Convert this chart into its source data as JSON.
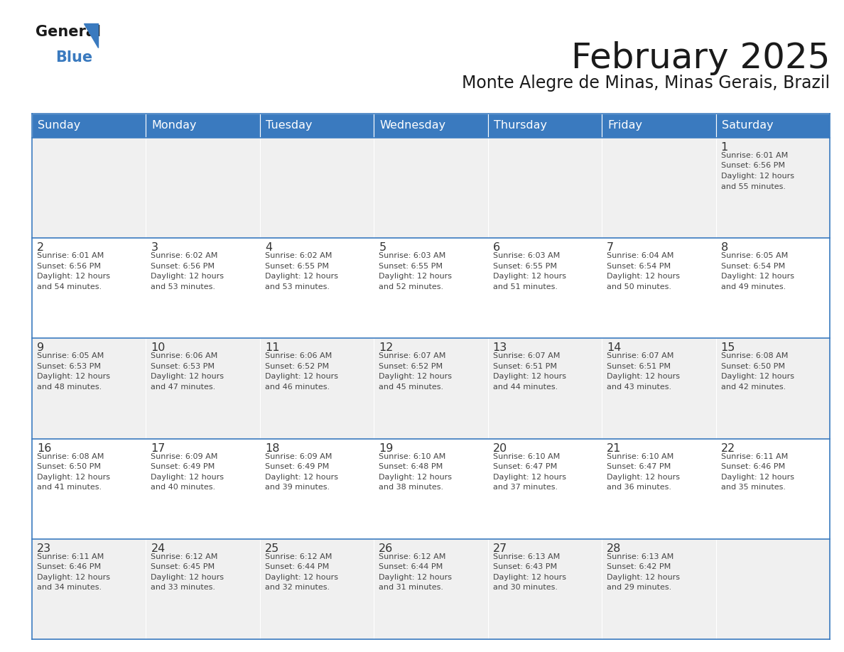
{
  "title": "February 2025",
  "subtitle": "Monte Alegre de Minas, Minas Gerais, Brazil",
  "header_color": "#3a7abf",
  "header_text_color": "#ffffff",
  "cell_bg_white": "#ffffff",
  "cell_bg_gray": "#f0f0f0",
  "border_color": "#3a7abf",
  "number_color": "#333333",
  "text_color": "#444444",
  "day_names": [
    "Sunday",
    "Monday",
    "Tuesday",
    "Wednesday",
    "Thursday",
    "Friday",
    "Saturday"
  ],
  "days": [
    {
      "day": 1,
      "col": 6,
      "row": 0,
      "sunrise": "6:01 AM",
      "sunset": "6:56 PM",
      "daylight_hours": 12,
      "daylight_minutes": 55
    },
    {
      "day": 2,
      "col": 0,
      "row": 1,
      "sunrise": "6:01 AM",
      "sunset": "6:56 PM",
      "daylight_hours": 12,
      "daylight_minutes": 54
    },
    {
      "day": 3,
      "col": 1,
      "row": 1,
      "sunrise": "6:02 AM",
      "sunset": "6:56 PM",
      "daylight_hours": 12,
      "daylight_minutes": 53
    },
    {
      "day": 4,
      "col": 2,
      "row": 1,
      "sunrise": "6:02 AM",
      "sunset": "6:55 PM",
      "daylight_hours": 12,
      "daylight_minutes": 53
    },
    {
      "day": 5,
      "col": 3,
      "row": 1,
      "sunrise": "6:03 AM",
      "sunset": "6:55 PM",
      "daylight_hours": 12,
      "daylight_minutes": 52
    },
    {
      "day": 6,
      "col": 4,
      "row": 1,
      "sunrise": "6:03 AM",
      "sunset": "6:55 PM",
      "daylight_hours": 12,
      "daylight_minutes": 51
    },
    {
      "day": 7,
      "col": 5,
      "row": 1,
      "sunrise": "6:04 AM",
      "sunset": "6:54 PM",
      "daylight_hours": 12,
      "daylight_minutes": 50
    },
    {
      "day": 8,
      "col": 6,
      "row": 1,
      "sunrise": "6:05 AM",
      "sunset": "6:54 PM",
      "daylight_hours": 12,
      "daylight_minutes": 49
    },
    {
      "day": 9,
      "col": 0,
      "row": 2,
      "sunrise": "6:05 AM",
      "sunset": "6:53 PM",
      "daylight_hours": 12,
      "daylight_minutes": 48
    },
    {
      "day": 10,
      "col": 1,
      "row": 2,
      "sunrise": "6:06 AM",
      "sunset": "6:53 PM",
      "daylight_hours": 12,
      "daylight_minutes": 47
    },
    {
      "day": 11,
      "col": 2,
      "row": 2,
      "sunrise": "6:06 AM",
      "sunset": "6:52 PM",
      "daylight_hours": 12,
      "daylight_minutes": 46
    },
    {
      "day": 12,
      "col": 3,
      "row": 2,
      "sunrise": "6:07 AM",
      "sunset": "6:52 PM",
      "daylight_hours": 12,
      "daylight_minutes": 45
    },
    {
      "day": 13,
      "col": 4,
      "row": 2,
      "sunrise": "6:07 AM",
      "sunset": "6:51 PM",
      "daylight_hours": 12,
      "daylight_minutes": 44
    },
    {
      "day": 14,
      "col": 5,
      "row": 2,
      "sunrise": "6:07 AM",
      "sunset": "6:51 PM",
      "daylight_hours": 12,
      "daylight_minutes": 43
    },
    {
      "day": 15,
      "col": 6,
      "row": 2,
      "sunrise": "6:08 AM",
      "sunset": "6:50 PM",
      "daylight_hours": 12,
      "daylight_minutes": 42
    },
    {
      "day": 16,
      "col": 0,
      "row": 3,
      "sunrise": "6:08 AM",
      "sunset": "6:50 PM",
      "daylight_hours": 12,
      "daylight_minutes": 41
    },
    {
      "day": 17,
      "col": 1,
      "row": 3,
      "sunrise": "6:09 AM",
      "sunset": "6:49 PM",
      "daylight_hours": 12,
      "daylight_minutes": 40
    },
    {
      "day": 18,
      "col": 2,
      "row": 3,
      "sunrise": "6:09 AM",
      "sunset": "6:49 PM",
      "daylight_hours": 12,
      "daylight_minutes": 39
    },
    {
      "day": 19,
      "col": 3,
      "row": 3,
      "sunrise": "6:10 AM",
      "sunset": "6:48 PM",
      "daylight_hours": 12,
      "daylight_minutes": 38
    },
    {
      "day": 20,
      "col": 4,
      "row": 3,
      "sunrise": "6:10 AM",
      "sunset": "6:47 PM",
      "daylight_hours": 12,
      "daylight_minutes": 37
    },
    {
      "day": 21,
      "col": 5,
      "row": 3,
      "sunrise": "6:10 AM",
      "sunset": "6:47 PM",
      "daylight_hours": 12,
      "daylight_minutes": 36
    },
    {
      "day": 22,
      "col": 6,
      "row": 3,
      "sunrise": "6:11 AM",
      "sunset": "6:46 PM",
      "daylight_hours": 12,
      "daylight_minutes": 35
    },
    {
      "day": 23,
      "col": 0,
      "row": 4,
      "sunrise": "6:11 AM",
      "sunset": "6:46 PM",
      "daylight_hours": 12,
      "daylight_minutes": 34
    },
    {
      "day": 24,
      "col": 1,
      "row": 4,
      "sunrise": "6:12 AM",
      "sunset": "6:45 PM",
      "daylight_hours": 12,
      "daylight_minutes": 33
    },
    {
      "day": 25,
      "col": 2,
      "row": 4,
      "sunrise": "6:12 AM",
      "sunset": "6:44 PM",
      "daylight_hours": 12,
      "daylight_minutes": 32
    },
    {
      "day": 26,
      "col": 3,
      "row": 4,
      "sunrise": "6:12 AM",
      "sunset": "6:44 PM",
      "daylight_hours": 12,
      "daylight_minutes": 31
    },
    {
      "day": 27,
      "col": 4,
      "row": 4,
      "sunrise": "6:13 AM",
      "sunset": "6:43 PM",
      "daylight_hours": 12,
      "daylight_minutes": 30
    },
    {
      "day": 28,
      "col": 5,
      "row": 4,
      "sunrise": "6:13 AM",
      "sunset": "6:42 PM",
      "daylight_hours": 12,
      "daylight_minutes": 29
    }
  ],
  "logo_general_color": "#1a1a1a",
  "logo_blue_color": "#3a7abf",
  "logo_triangle_color": "#3a7abf"
}
